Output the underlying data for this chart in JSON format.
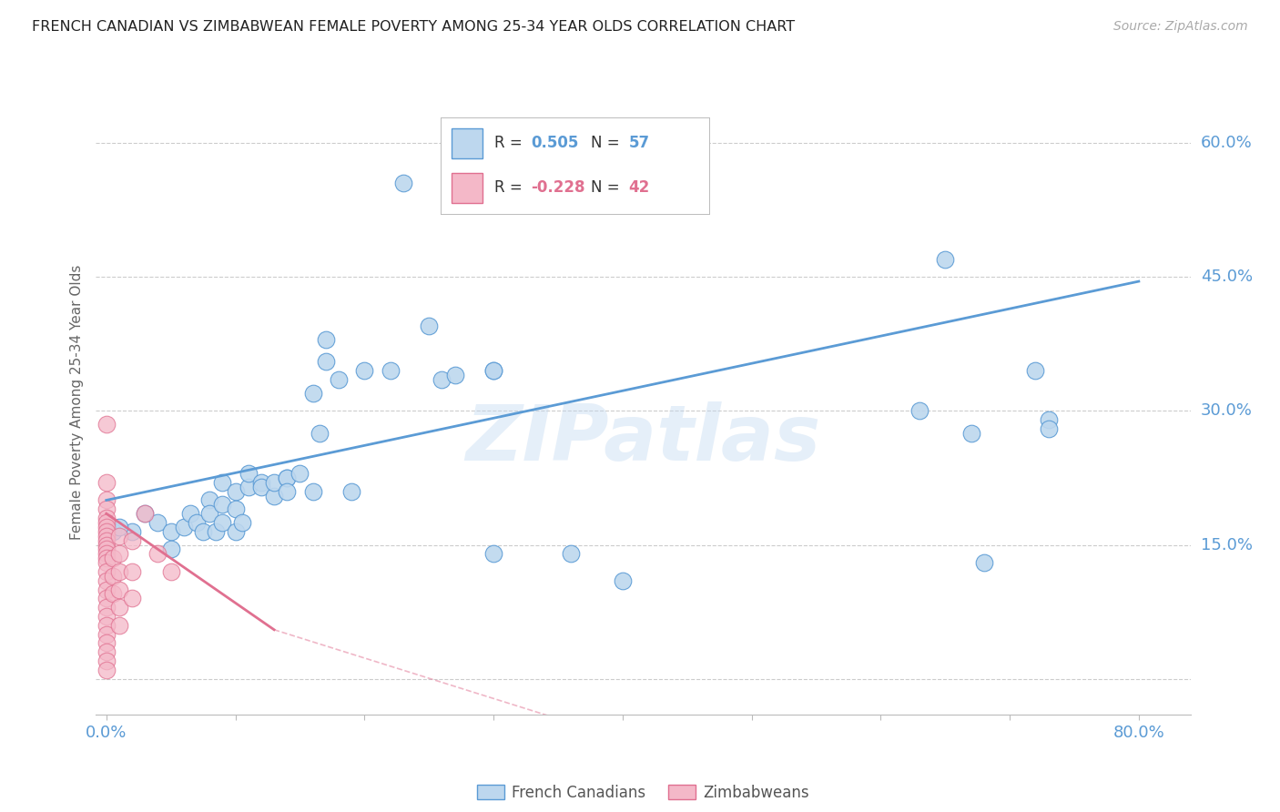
{
  "title": "FRENCH CANADIAN VS ZIMBABWEAN FEMALE POVERTY AMONG 25-34 YEAR OLDS CORRELATION CHART",
  "source": "Source: ZipAtlas.com",
  "ylabel": "Female Poverty Among 25-34 Year Olds",
  "xlim": [
    -0.008,
    0.84
  ],
  "ylim": [
    -0.04,
    0.66
  ],
  "x_ticks": [
    0.0,
    0.1,
    0.2,
    0.3,
    0.4,
    0.5,
    0.6,
    0.7,
    0.8
  ],
  "x_tick_labels": [
    "0.0%",
    "",
    "",
    "",
    "",
    "",
    "",
    "",
    "80.0%"
  ],
  "y_ticks": [
    0.0,
    0.15,
    0.3,
    0.45,
    0.6
  ],
  "y_tick_labels_right": [
    "",
    "15.0%",
    "30.0%",
    "45.0%",
    "60.0%"
  ],
  "watermark": "ZIPatlas",
  "blue_color": "#5b9bd5",
  "blue_fill": "#bdd7ee",
  "pink_color": "#e07090",
  "pink_fill": "#f4b8c8",
  "grid_color": "#cccccc",
  "bg_color": "#ffffff",
  "title_color": "#222222",
  "axis_color": "#5b9bd5",
  "blue_line": [
    [
      0.0,
      0.2
    ],
    [
      0.8,
      0.445
    ]
  ],
  "pink_line_solid": [
    [
      0.0,
      0.185
    ],
    [
      0.13,
      0.055
    ]
  ],
  "pink_line_dash": [
    [
      0.13,
      0.055
    ],
    [
      0.45,
      -0.09
    ]
  ],
  "blue_pts": [
    [
      0.02,
      0.165
    ],
    [
      0.03,
      0.185
    ],
    [
      0.04,
      0.175
    ],
    [
      0.05,
      0.165
    ],
    [
      0.05,
      0.145
    ],
    [
      0.06,
      0.17
    ],
    [
      0.065,
      0.185
    ],
    [
      0.07,
      0.175
    ],
    [
      0.075,
      0.165
    ],
    [
      0.08,
      0.2
    ],
    [
      0.08,
      0.185
    ],
    [
      0.085,
      0.165
    ],
    [
      0.09,
      0.195
    ],
    [
      0.09,
      0.175
    ],
    [
      0.09,
      0.22
    ],
    [
      0.1,
      0.21
    ],
    [
      0.1,
      0.19
    ],
    [
      0.1,
      0.165
    ],
    [
      0.105,
      0.175
    ],
    [
      0.11,
      0.215
    ],
    [
      0.11,
      0.23
    ],
    [
      0.12,
      0.22
    ],
    [
      0.12,
      0.215
    ],
    [
      0.13,
      0.205
    ],
    [
      0.13,
      0.22
    ],
    [
      0.14,
      0.225
    ],
    [
      0.14,
      0.225
    ],
    [
      0.14,
      0.21
    ],
    [
      0.15,
      0.23
    ],
    [
      0.16,
      0.32
    ],
    [
      0.16,
      0.21
    ],
    [
      0.165,
      0.275
    ],
    [
      0.17,
      0.355
    ],
    [
      0.17,
      0.38
    ],
    [
      0.18,
      0.335
    ],
    [
      0.19,
      0.21
    ],
    [
      0.2,
      0.345
    ],
    [
      0.22,
      0.345
    ],
    [
      0.23,
      0.555
    ],
    [
      0.25,
      0.395
    ],
    [
      0.26,
      0.335
    ],
    [
      0.27,
      0.34
    ],
    [
      0.3,
      0.14
    ],
    [
      0.3,
      0.345
    ],
    [
      0.3,
      0.345
    ],
    [
      0.36,
      0.14
    ],
    [
      0.4,
      0.11
    ],
    [
      0.43,
      0.535
    ],
    [
      0.63,
      0.3
    ],
    [
      0.65,
      0.47
    ],
    [
      0.67,
      0.275
    ],
    [
      0.68,
      0.13
    ],
    [
      0.72,
      0.345
    ],
    [
      0.73,
      0.29
    ],
    [
      0.73,
      0.28
    ],
    [
      0.005,
      0.165
    ],
    [
      0.01,
      0.17
    ]
  ],
  "pink_pts": [
    [
      0.0,
      0.285
    ],
    [
      0.0,
      0.22
    ],
    [
      0.0,
      0.2
    ],
    [
      0.0,
      0.19
    ],
    [
      0.0,
      0.18
    ],
    [
      0.0,
      0.175
    ],
    [
      0.0,
      0.17
    ],
    [
      0.0,
      0.165
    ],
    [
      0.0,
      0.16
    ],
    [
      0.0,
      0.155
    ],
    [
      0.0,
      0.15
    ],
    [
      0.0,
      0.145
    ],
    [
      0.0,
      0.14
    ],
    [
      0.0,
      0.135
    ],
    [
      0.0,
      0.13
    ],
    [
      0.0,
      0.12
    ],
    [
      0.0,
      0.11
    ],
    [
      0.0,
      0.1
    ],
    [
      0.0,
      0.09
    ],
    [
      0.0,
      0.08
    ],
    [
      0.0,
      0.07
    ],
    [
      0.0,
      0.06
    ],
    [
      0.0,
      0.05
    ],
    [
      0.0,
      0.04
    ],
    [
      0.0,
      0.03
    ],
    [
      0.0,
      0.02
    ],
    [
      0.0,
      0.01
    ],
    [
      0.005,
      0.135
    ],
    [
      0.005,
      0.115
    ],
    [
      0.005,
      0.095
    ],
    [
      0.01,
      0.16
    ],
    [
      0.01,
      0.14
    ],
    [
      0.01,
      0.12
    ],
    [
      0.01,
      0.1
    ],
    [
      0.01,
      0.08
    ],
    [
      0.01,
      0.06
    ],
    [
      0.02,
      0.155
    ],
    [
      0.02,
      0.12
    ],
    [
      0.02,
      0.09
    ],
    [
      0.03,
      0.185
    ],
    [
      0.04,
      0.14
    ],
    [
      0.05,
      0.12
    ]
  ]
}
